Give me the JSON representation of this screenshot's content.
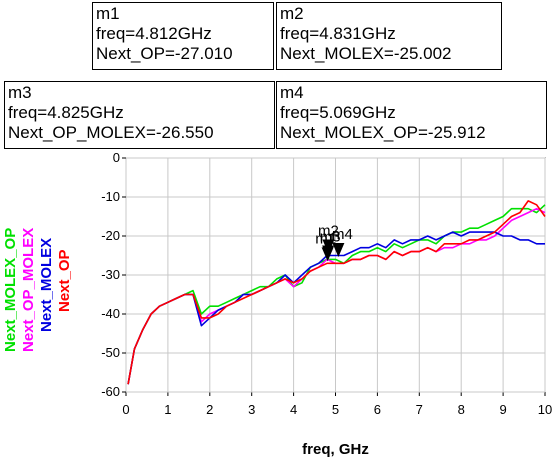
{
  "chart_data": {
    "type": "line",
    "xlabel": "freq, GHz",
    "ylabel": "",
    "xlim": [
      0,
      10
    ],
    "ylim": [
      -60,
      0
    ],
    "xticks": [
      0,
      1,
      2,
      3,
      4,
      5,
      6,
      7,
      8,
      9,
      10
    ],
    "yticks": [
      0,
      -10,
      -20,
      -30,
      -40,
      -50,
      -60
    ],
    "grid": true,
    "series": [
      {
        "name": "Next_MOLEX_OP",
        "color": "#00e000",
        "x": [
          0.05,
          0.2,
          0.4,
          0.6,
          0.8,
          1.0,
          1.2,
          1.4,
          1.6,
          1.8,
          2.0,
          2.2,
          2.4,
          2.6,
          2.8,
          3.0,
          3.2,
          3.4,
          3.6,
          3.8,
          4.0,
          4.2,
          4.4,
          4.6,
          4.8,
          5.0,
          5.2,
          5.4,
          5.6,
          5.8,
          6.0,
          6.2,
          6.4,
          6.6,
          6.8,
          7.0,
          7.2,
          7.4,
          7.6,
          7.8,
          8.0,
          8.2,
          8.4,
          8.6,
          8.8,
          9.0,
          9.2,
          9.4,
          9.6,
          9.8,
          10.0
        ],
        "y": [
          -58,
          -49,
          -44,
          -40,
          -38,
          -37,
          -36,
          -35,
          -34,
          -40,
          -38,
          -38,
          -37,
          -36,
          -35,
          -34,
          -33,
          -33,
          -31,
          -30,
          -33,
          -32,
          -28,
          -27,
          -26,
          -26,
          -27,
          -25,
          -24,
          -24,
          -23,
          -24,
          -22,
          -23,
          -22,
          -21,
          -21,
          -22,
          -20,
          -19,
          -19,
          -18,
          -18,
          -17,
          -16,
          -15,
          -13,
          -13,
          -13,
          -14,
          -12
        ]
      },
      {
        "name": "Next_OP_MOLEX",
        "color": "#ff00ff",
        "x": [
          0.05,
          0.2,
          0.4,
          0.6,
          0.8,
          1.0,
          1.2,
          1.4,
          1.6,
          1.8,
          2.0,
          2.2,
          2.4,
          2.6,
          2.8,
          3.0,
          3.2,
          3.4,
          3.6,
          3.8,
          4.0,
          4.2,
          4.4,
          4.6,
          4.8,
          5.0,
          5.2,
          5.4,
          5.6,
          5.8,
          6.0,
          6.2,
          6.4,
          6.6,
          6.8,
          7.0,
          7.2,
          7.4,
          7.6,
          7.8,
          8.0,
          8.2,
          8.4,
          8.6,
          8.8,
          9.0,
          9.2,
          9.4,
          9.6,
          9.8,
          10.0
        ],
        "y": [
          -58,
          -49,
          -44,
          -40,
          -38,
          -37,
          -36,
          -35,
          -35,
          -42,
          -40,
          -39,
          -38,
          -37,
          -35,
          -35,
          -34,
          -33,
          -32,
          -31,
          -33,
          -31,
          -29,
          -28,
          -26,
          -27,
          -27,
          -26,
          -26,
          -25,
          -25,
          -26,
          -24,
          -25,
          -24,
          -24,
          -23,
          -24,
          -23,
          -23,
          -22,
          -22,
          -21,
          -21,
          -20,
          -18,
          -16,
          -15,
          -14,
          -13,
          -14
        ]
      },
      {
        "name": "Next_MOLEX",
        "color": "#0000e0",
        "x": [
          0.05,
          0.2,
          0.4,
          0.6,
          0.8,
          1.0,
          1.2,
          1.4,
          1.6,
          1.8,
          2.0,
          2.2,
          2.4,
          2.6,
          2.8,
          3.0,
          3.2,
          3.4,
          3.6,
          3.8,
          4.0,
          4.2,
          4.4,
          4.6,
          4.8,
          5.0,
          5.2,
          5.4,
          5.6,
          5.8,
          6.0,
          6.2,
          6.4,
          6.6,
          6.8,
          7.0,
          7.2,
          7.4,
          7.6,
          7.8,
          8.0,
          8.2,
          8.4,
          8.6,
          8.8,
          9.0,
          9.2,
          9.4,
          9.6,
          9.8,
          10.0
        ],
        "y": [
          -58,
          -49,
          -44,
          -40,
          -38,
          -37,
          -36,
          -35,
          -35,
          -43,
          -41,
          -39,
          -38,
          -37,
          -35,
          -35,
          -34,
          -33,
          -32,
          -30,
          -32,
          -30,
          -28,
          -27,
          -25,
          -25,
          -25,
          -24,
          -23,
          -23,
          -22,
          -23,
          -21,
          -22,
          -21,
          -21,
          -20,
          -21,
          -20,
          -19,
          -20,
          -19,
          -19,
          -19,
          -19,
          -20,
          -20,
          -21,
          -21,
          -22,
          -22
        ]
      },
      {
        "name": "Next_OP",
        "color": "#ff0000",
        "x": [
          0.05,
          0.2,
          0.4,
          0.6,
          0.8,
          1.0,
          1.2,
          1.4,
          1.6,
          1.8,
          2.0,
          2.2,
          2.4,
          2.6,
          2.8,
          3.0,
          3.2,
          3.4,
          3.6,
          3.8,
          4.0,
          4.2,
          4.4,
          4.6,
          4.8,
          5.0,
          5.2,
          5.4,
          5.6,
          5.8,
          6.0,
          6.2,
          6.4,
          6.6,
          6.8,
          7.0,
          7.2,
          7.4,
          7.6,
          7.8,
          8.0,
          8.2,
          8.4,
          8.6,
          8.8,
          9.0,
          9.2,
          9.4,
          9.6,
          9.8,
          10.0
        ],
        "y": [
          -58,
          -49,
          -44,
          -40,
          -38,
          -37,
          -36,
          -35,
          -35,
          -41,
          -41,
          -40,
          -38,
          -37,
          -36,
          -35,
          -34,
          -33,
          -32,
          -31,
          -32,
          -31,
          -29,
          -28,
          -27,
          -27,
          -27,
          -26,
          -26,
          -25,
          -25,
          -26,
          -24,
          -25,
          -24,
          -24,
          -23,
          -24,
          -22,
          -22,
          -22,
          -21,
          -21,
          -20,
          -19,
          -17,
          -15,
          -14,
          -11,
          -12,
          -15
        ]
      }
    ],
    "markers": [
      {
        "label": "m1",
        "freq": "freq=4.812GHz",
        "value": "Next_OP=-27.010",
        "x": 4.812,
        "y": -27.01
      },
      {
        "label": "m2",
        "freq": "freq=4.831GHz",
        "value": "Next_MOLEX=-25.002",
        "x": 4.831,
        "y": -25.002
      },
      {
        "label": "m3",
        "freq": "freq=4.825GHz",
        "value": "Next_OP_MOLEX=-26.550",
        "x": 4.825,
        "y": -26.55
      },
      {
        "label": "m4",
        "freq": "freq=5.069GHz",
        "value": "Next_MOLEX_OP=-25.912",
        "x": 5.069,
        "y": -25.912
      }
    ]
  }
}
